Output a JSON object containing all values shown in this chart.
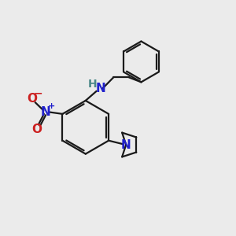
{
  "bg_color": "#ebebeb",
  "bond_color": "#1a1a1a",
  "N_color": "#2020cc",
  "NH_color": "#4a8888",
  "O_color": "#cc2020",
  "line_width": 1.6,
  "font_size_atom": 11,
  "font_size_charge": 7,
  "xlim": [
    0,
    10
  ],
  "ylim": [
    0,
    10
  ]
}
